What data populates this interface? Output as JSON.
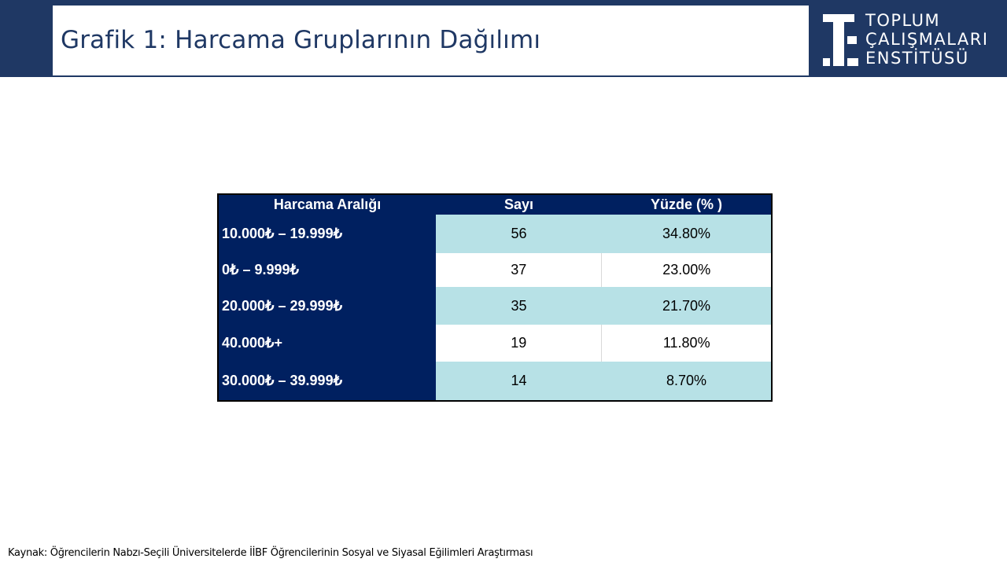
{
  "header": {
    "title": "Grafik 1: Harcama Gruplarının Dağılımı",
    "logo_lines": [
      "TOPLUM",
      "ÇALIŞMALARI",
      "ENSTİTÜSÜ"
    ],
    "band_color": "#1f3864"
  },
  "table": {
    "columns": [
      "Harcama Aralığı",
      "Sayı",
      "Yüzde (% )"
    ],
    "rows": [
      {
        "range": "10.000₺ – 19.999₺",
        "count": "56",
        "percent": "34.80%"
      },
      {
        "range": "0₺ – 9.999₺",
        "count": "37",
        "percent": "23.00%"
      },
      {
        "range": "20.000₺ – 29.999₺",
        "count": "35",
        "percent": "21.70%"
      },
      {
        "range": "40.000₺+",
        "count": "19",
        "percent": "11.80%"
      },
      {
        "range": "30.000₺ – 39.999₺",
        "count": "14",
        "percent": "8.70%"
      }
    ],
    "header_color": "#002060",
    "tint_color": "#b7e1e6"
  },
  "footer": {
    "source": "Kaynak: Öğrencilerin Nabzı-Seçili Üniversitelerde İİBF Öğrencilerinin Sosyal ve Siyasal Eğilimleri Araştırması"
  }
}
